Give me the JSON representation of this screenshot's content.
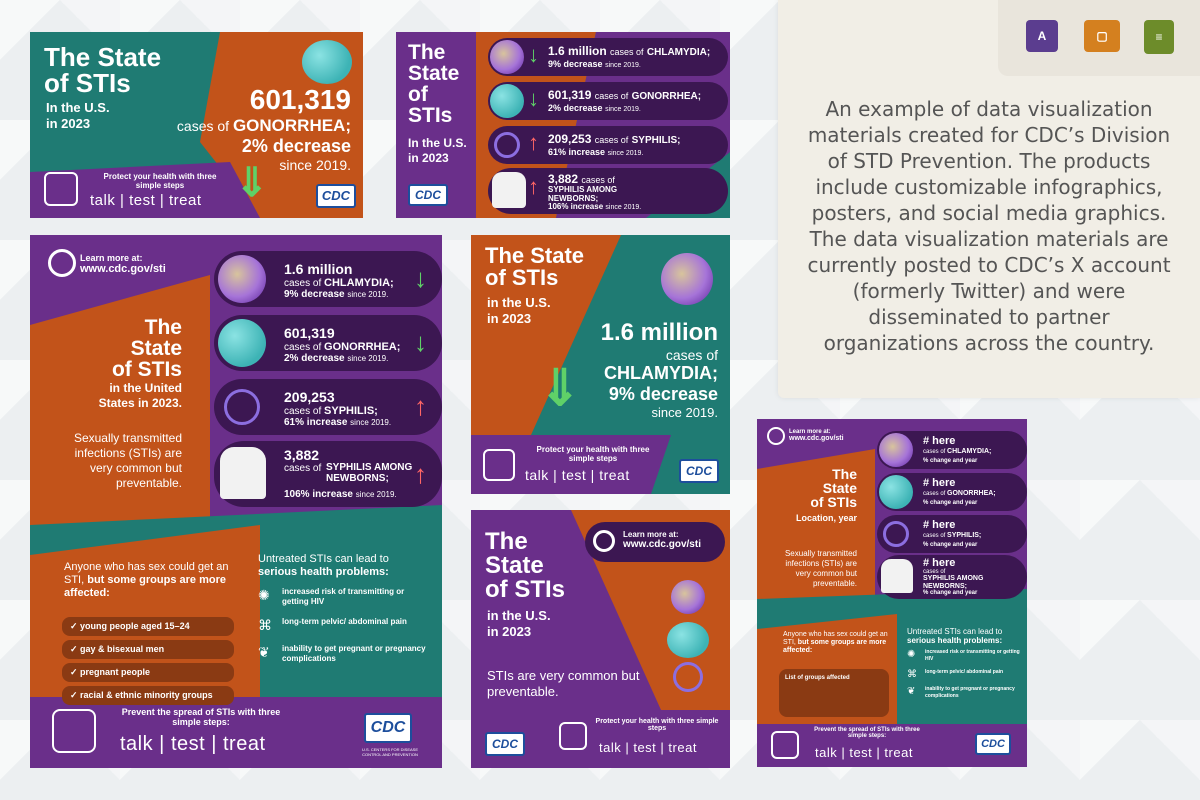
{
  "description": {
    "text": "An example of data visualization materials created for CDC’s Division of STD Prevention. The products include customizable infographics, posters, and social media graphics. The data visualization materials are currently posted to CDC’s X account (formerly Twitter) and were disseminated to partner organizations across the country.",
    "tool_icons": [
      "translate-icon",
      "presentation-icon",
      "document-stack-icon"
    ],
    "tool_icon_glyphs": [
      "A",
      "▢",
      "≡"
    ]
  },
  "common": {
    "cdc": "CDC",
    "protect": "Protect your health with three simple steps",
    "prevent": "Prevent the spread of STIs with three simple steps:",
    "talk": "talk",
    "test": "test",
    "treat": "treat",
    "learn_more": "Learn more at:",
    "url": "www.cdc.gov/sti"
  },
  "card1": {
    "title1": "The State",
    "title2": "of STIs",
    "sub1": "In the U.S.",
    "sub2": "in 2023",
    "value": "601,319",
    "cases_of": "cases of",
    "disease": "GONORRHEA;",
    "change": "2% decrease",
    "since": "since 2019."
  },
  "card2": {
    "title1": "The",
    "title2": "State",
    "title3": "of",
    "title4": "STIs",
    "sub1": "In the U.S.",
    "sub2": "in 2023",
    "rows": [
      {
        "value": "1.6 million",
        "cases": "cases of",
        "disease": "CHLAMYDIA;",
        "change": "9% decrease",
        "since": "since 2019."
      },
      {
        "value": "601,319",
        "cases": "cases of",
        "disease": "GONORRHEA;",
        "change": "2% decrease",
        "since": "since 2019."
      },
      {
        "value": "209,253",
        "cases": "cases of",
        "disease": "SYPHILIS;",
        "change": "61% increase",
        "since": "since 2019."
      },
      {
        "value": "3,882",
        "cases": "cases of",
        "disease": "SYPHILIS AMONG NEWBORNS;",
        "change": "106% increase",
        "since": "since 2019."
      }
    ]
  },
  "card3": {
    "title1": "The",
    "title2": "State",
    "title3": "of STIs",
    "sub1": "in the United",
    "sub2": "States in 2023.",
    "intro": "Sexually transmitted infections (STIs) are very common but preventable.",
    "rows": [
      {
        "value": "1.6 million",
        "cases": "cases of",
        "disease": "CHLAMYDIA;",
        "change": "9% decrease",
        "since": "since 2019."
      },
      {
        "value": "601,319",
        "cases": "cases of",
        "disease": "GONORRHEA;",
        "change": "2% decrease",
        "since": "since 2019."
      },
      {
        "value": "209,253",
        "cases": "cases of",
        "disease": "SYPHILIS;",
        "change": "61% increase",
        "since": "since 2019."
      },
      {
        "value": "3,882",
        "cases": "cases of",
        "disease": "SYPHILIS AMONG NEWBORNS;",
        "change": "106% increase",
        "since": "since 2019."
      }
    ],
    "groups_intro_1": "Anyone who has sex could get an STI,",
    "groups_intro_2": "but some groups are more affected:",
    "groups": [
      "young people aged 15–24",
      "gay & bisexual men",
      "pregnant people",
      "racial & ethnic minority groups"
    ],
    "problems_intro_1": "Untreated STIs can lead to",
    "problems_intro_2": "serious health problems:",
    "problems": [
      "increased risk of transmitting or getting HIV",
      "long-term pelvic/ abdominal pain",
      "inability to get pregnant or pregnancy complications"
    ],
    "cdc_caption": "U.S. CENTERS FOR DISEASE CONTROL AND PREVENTION"
  },
  "card4": {
    "title1": "The State",
    "title2": "of STIs",
    "sub1": "in the U.S.",
    "sub2": "in 2023",
    "value": "1.6 million",
    "cases_of": "cases of",
    "disease": "CHLAMYDIA;",
    "change": "9% decrease",
    "since": "since 2019."
  },
  "card5": {
    "title1": "The",
    "title2": "State",
    "title3": "of STIs",
    "sub1": "in the U.S.",
    "sub2": "in 2023",
    "intro": "STIs are very common but preventable."
  },
  "card6": {
    "title1": "The",
    "title2": "State",
    "title3": "of STIs",
    "sub": "Location, year",
    "intro": "Sexually transmitted infections (STIs) are very common but preventable.",
    "rows": [
      {
        "value": "# here",
        "cases": "cases of",
        "disease": "CHLAMYDIA;",
        "change": "% change and year"
      },
      {
        "value": "# here",
        "cases": "cases of",
        "disease": "GONORRHEA;",
        "change": "% change and year"
      },
      {
        "value": "# here",
        "cases": "cases of",
        "disease": "SYPHILIS;",
        "change": "% change and year"
      },
      {
        "value": "# here",
        "cases": "cases of",
        "disease": "SYPHILIS AMONG NEWBORNS;",
        "change": "% change and year"
      }
    ],
    "groups_intro_1": "Anyone who has sex could get an STI,",
    "groups_intro_2": "but some groups are more affected:",
    "groups_placeholder": "List of groups affected",
    "problems_intro_1": "Untreated STIs can lead to",
    "problems_intro_2": "serious health problems:",
    "problems": [
      "increased risk or transmitting or getting HIV",
      "long-term pelvic/ abdominal pain",
      "inability to get pregnant or pregnancy complications"
    ]
  }
}
